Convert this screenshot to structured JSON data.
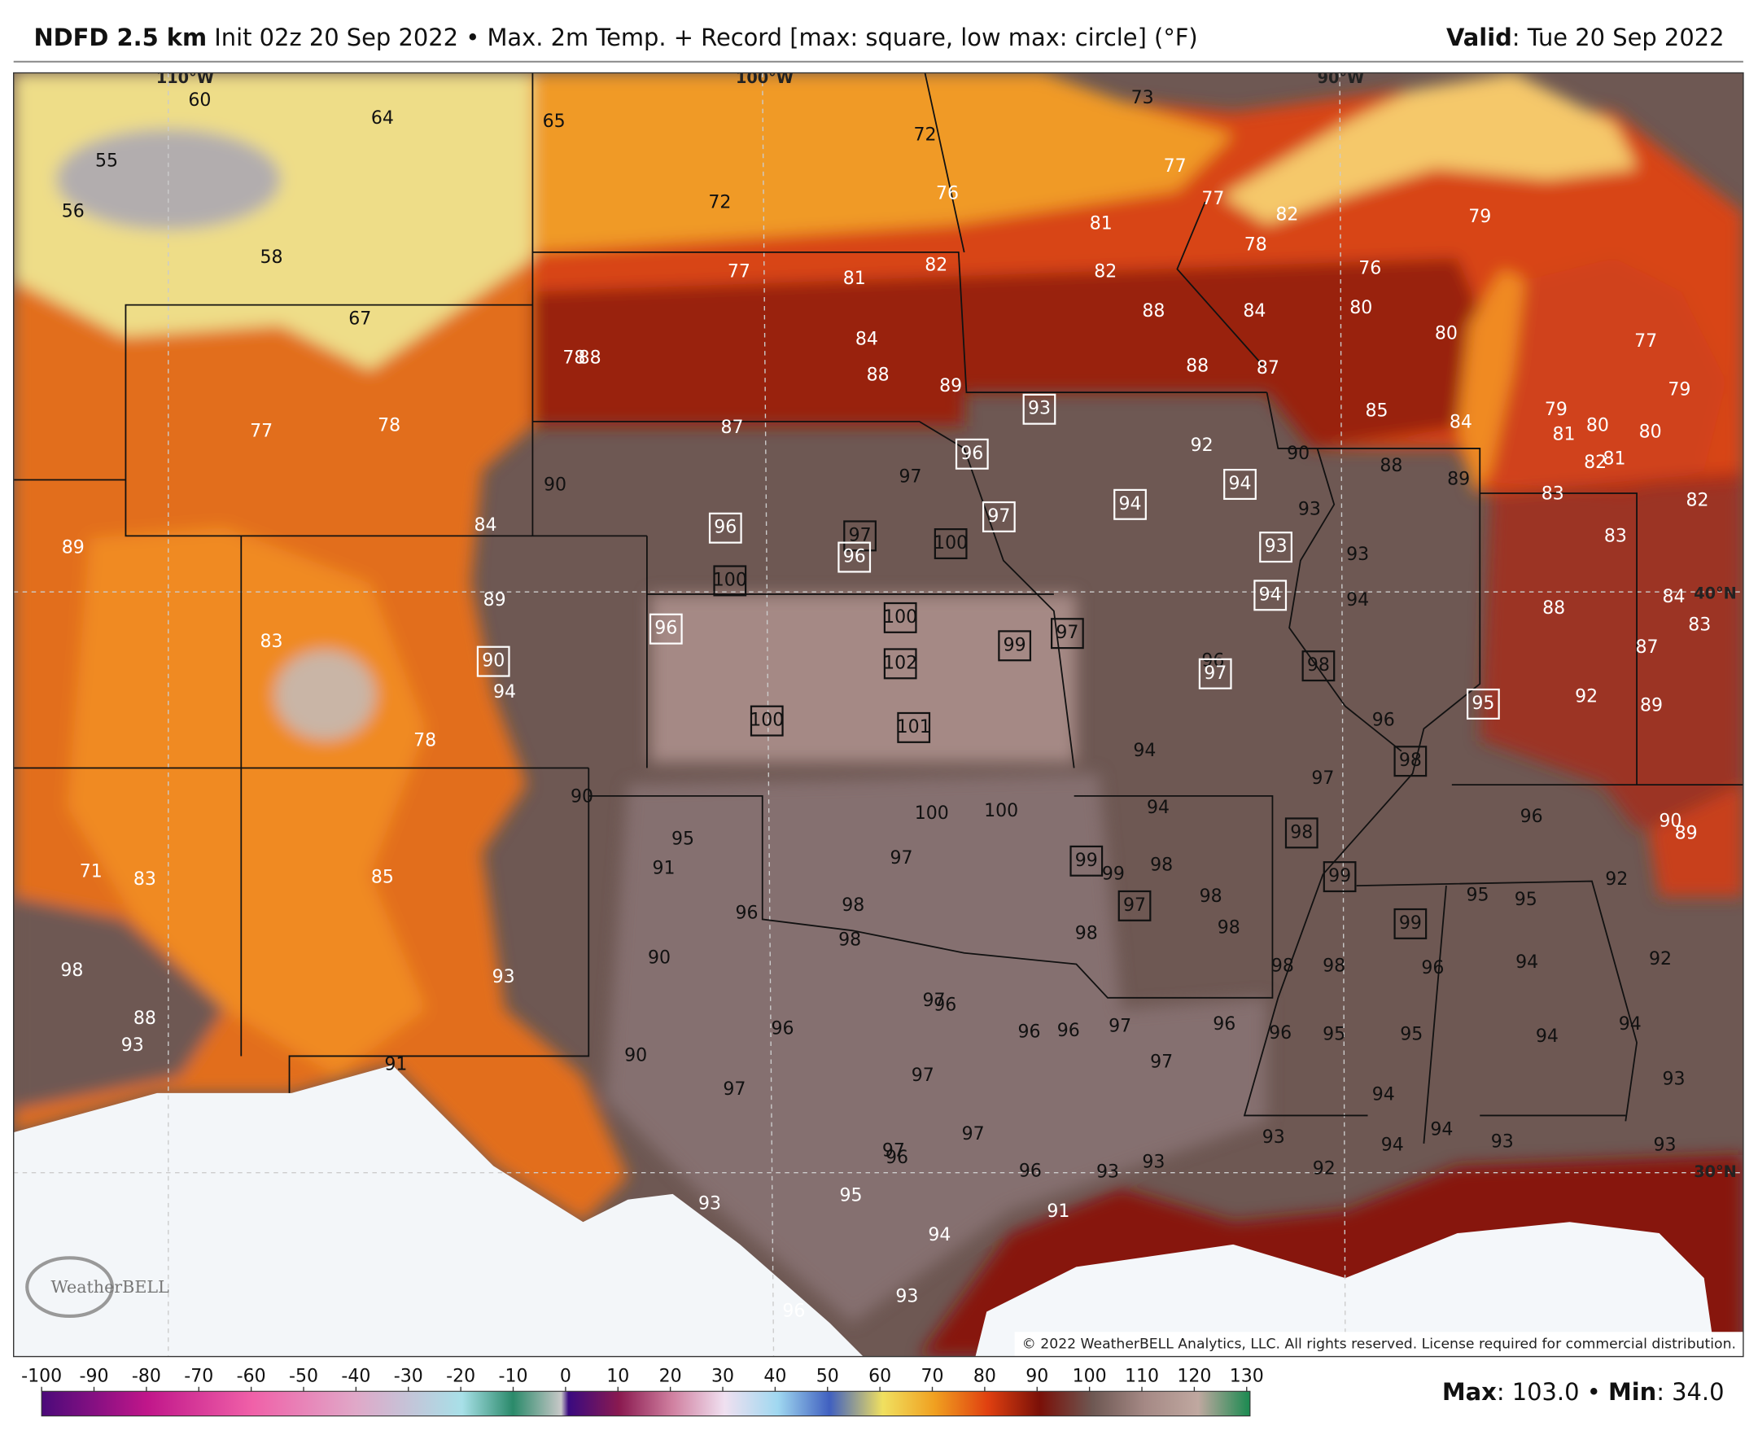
{
  "header": {
    "model": "NDFD 2.5 km",
    "description": " Init 02z 20 Sep 2022 • Max. 2m Temp. + Record [max: square, low max: circle] (°F)",
    "valid_label": "Valid",
    "valid_value": ": Tue 20 Sep 2022"
  },
  "graticule": {
    "lon": [
      "110°W",
      "100°W",
      "90°W"
    ],
    "lat": [
      "40°N",
      "30°N"
    ]
  },
  "stations": [
    60,
    64,
    65,
    55,
    56,
    72,
    72,
    73,
    77,
    76,
    81,
    77,
    82,
    78,
    79,
    58,
    77,
    81,
    82,
    82,
    76,
    80,
    67,
    88,
    84,
    80,
    77,
    84,
    78,
    88,
    88,
    89,
    88,
    87,
    79,
    77,
    78,
    87,
    85,
    84,
    79,
    81,
    80,
    80,
    90,
    97,
    92,
    90,
    88,
    89,
    82,
    81,
    83,
    82,
    84,
    93,
    89,
    93,
    83,
    89,
    94,
    88,
    84,
    83,
    83,
    87,
    94,
    96,
    92,
    89,
    78,
    96,
    94,
    97,
    90,
    100,
    100,
    94,
    96,
    90,
    89,
    95,
    97,
    91,
    98,
    99,
    71,
    83,
    85,
    92,
    98,
    95,
    95,
    98,
    96,
    98,
    98,
    98,
    90,
    92,
    98,
    93,
    94,
    98,
    98,
    96,
    97,
    96,
    88,
    96,
    96,
    96,
    97,
    96,
    96,
    95,
    95,
    94,
    93,
    94,
    90,
    91,
    97,
    97,
    93,
    97,
    94,
    94,
    93,
    93,
    94,
    97,
    93,
    97,
    96,
    96,
    93,
    93,
    92,
    93,
    95,
    91,
    94,
    93,
    96
  ],
  "record_max": [
    93,
    96,
    94,
    94,
    97,
    96,
    97,
    96,
    100,
    93,
    100,
    94,
    96,
    100,
    97,
    99,
    90,
    102,
    97,
    98,
    100,
    101,
    95,
    98,
    98,
    99,
    97,
    99,
    99
  ],
  "logo": "WeatherBELL",
  "copyright": "© 2022 WeatherBELL Analytics, LLC. All rights reserved. License required for commercial distribution.",
  "colorbar": {
    "ticks": [
      -100,
      -90,
      -80,
      -70,
      -60,
      -50,
      -40,
      -30,
      -20,
      -10,
      0,
      10,
      20,
      30,
      40,
      50,
      60,
      70,
      80,
      90,
      100,
      110,
      120,
      130
    ]
  },
  "footer": {
    "max_label": "Max",
    "max_value": ": 103.0 • ",
    "min_label": "Min",
    "min_value": ": 34.0"
  }
}
